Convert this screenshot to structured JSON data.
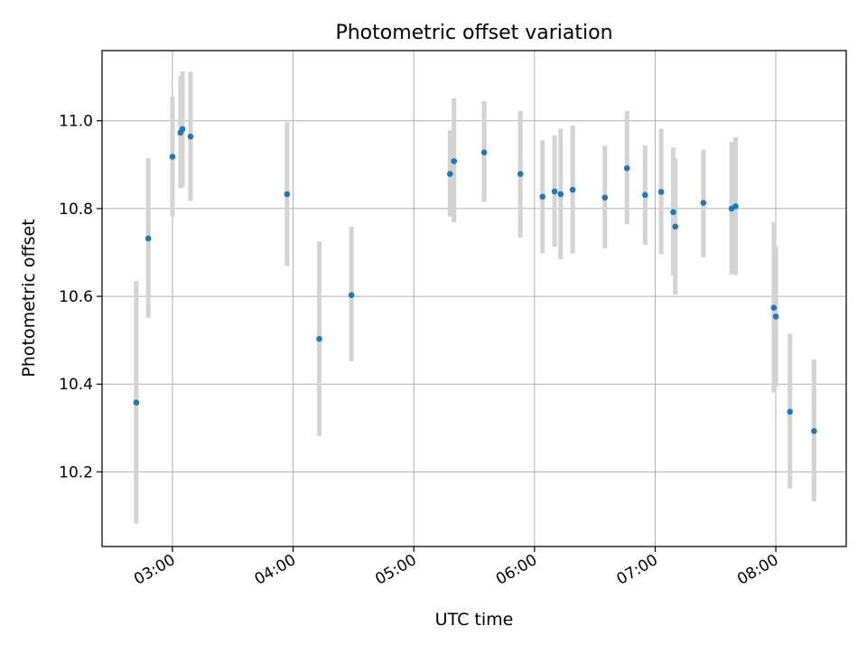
{
  "chart_data": {
    "type": "scatter",
    "title": "Photometric offset variation",
    "xlabel": "UTC time",
    "ylabel": "Photometric offset",
    "x_ticks": [
      "03:00",
      "04:00",
      "05:00",
      "06:00",
      "07:00",
      "08:00"
    ],
    "y_ticks": [
      "10.2",
      "10.4",
      "10.6",
      "10.8",
      "11.0"
    ],
    "x_tick_values": [
      "03:00",
      "04:00",
      "05:00",
      "06:00",
      "07:00",
      "08:00"
    ],
    "y_tick_values": [
      10.2,
      10.4,
      10.6,
      10.8,
      11.0
    ],
    "xlim": [
      "02:25",
      "08:35"
    ],
    "ylim": [
      10.03,
      11.16
    ],
    "grid": true,
    "x_tick_rotation": "rotated",
    "colors": {
      "marker": "#1f77b4",
      "errorbar": "#d3d3d3",
      "grid": "#b0b0b0",
      "axes": "#000000"
    },
    "series": [
      {
        "points": [
          {
            "x": "02:42",
            "y": 10.358,
            "lo": 10.082,
            "hi": 10.635
          },
          {
            "x": "02:48",
            "y": 10.732,
            "lo": 10.551,
            "hi": 10.915
          },
          {
            "x": "03:00",
            "y": 10.918,
            "lo": 10.782,
            "hi": 11.055
          },
          {
            "x": "03:04",
            "y": 10.973,
            "lo": 10.846,
            "hi": 11.102
          },
          {
            "x": "03:05",
            "y": 10.981,
            "lo": 10.849,
            "hi": 11.113
          },
          {
            "x": "03:09",
            "y": 10.964,
            "lo": 10.817,
            "hi": 11.112
          },
          {
            "x": "03:57",
            "y": 10.833,
            "lo": 10.669,
            "hi": 10.997
          },
          {
            "x": "04:13",
            "y": 10.503,
            "lo": 10.282,
            "hi": 10.725
          },
          {
            "x": "04:29",
            "y": 10.603,
            "lo": 10.452,
            "hi": 10.758
          },
          {
            "x": "05:18",
            "y": 10.879,
            "lo": 10.782,
            "hi": 10.978
          },
          {
            "x": "05:20",
            "y": 10.908,
            "lo": 10.769,
            "hi": 11.051
          },
          {
            "x": "05:35",
            "y": 10.928,
            "lo": 10.815,
            "hi": 11.045
          },
          {
            "x": "05:53",
            "y": 10.879,
            "lo": 10.734,
            "hi": 11.023
          },
          {
            "x": "06:04",
            "y": 10.827,
            "lo": 10.698,
            "hi": 10.956
          },
          {
            "x": "06:10",
            "y": 10.839,
            "lo": 10.713,
            "hi": 10.967
          },
          {
            "x": "06:13",
            "y": 10.833,
            "lo": 10.684,
            "hi": 10.982
          },
          {
            "x": "06:19",
            "y": 10.843,
            "lo": 10.698,
            "hi": 10.989
          },
          {
            "x": "06:35",
            "y": 10.825,
            "lo": 10.709,
            "hi": 10.943
          },
          {
            "x": "06:46",
            "y": 10.892,
            "lo": 10.764,
            "hi": 11.022
          },
          {
            "x": "06:55",
            "y": 10.831,
            "lo": 10.718,
            "hi": 10.944
          },
          {
            "x": "07:03",
            "y": 10.838,
            "lo": 10.696,
            "hi": 10.982
          },
          {
            "x": "07:09",
            "y": 10.792,
            "lo": 10.647,
            "hi": 10.939
          },
          {
            "x": "07:10",
            "y": 10.759,
            "lo": 10.604,
            "hi": 10.914
          },
          {
            "x": "07:24",
            "y": 10.813,
            "lo": 10.689,
            "hi": 10.935
          },
          {
            "x": "07:38",
            "y": 10.8,
            "lo": 10.65,
            "hi": 10.951
          },
          {
            "x": "07:40",
            "y": 10.805,
            "lo": 10.648,
            "hi": 10.963
          },
          {
            "x": "07:59",
            "y": 10.574,
            "lo": 10.381,
            "hi": 10.77
          },
          {
            "x": "08:00",
            "y": 10.554,
            "lo": 10.394,
            "hi": 10.714
          },
          {
            "x": "08:07",
            "y": 10.337,
            "lo": 10.162,
            "hi": 10.515
          },
          {
            "x": "08:19",
            "y": 10.293,
            "lo": 10.133,
            "hi": 10.456
          }
        ]
      }
    ]
  }
}
